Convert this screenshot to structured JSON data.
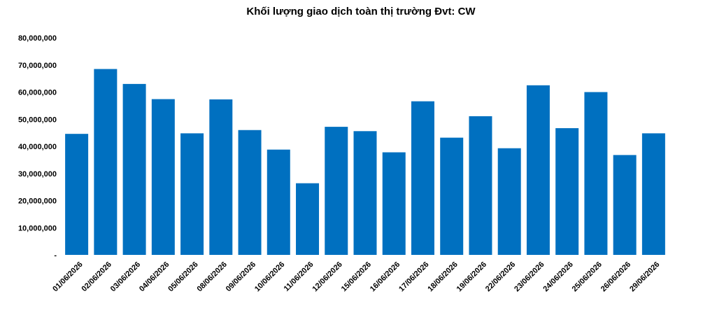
{
  "chart_data": {
    "type": "bar",
    "title": "Khối lượng giao dịch toàn thị trường Đvt: CW",
    "xlabel": "",
    "ylabel": "",
    "categories": [
      "01/06/2026",
      "02/06/2026",
      "03/06/2026",
      "04/06/2026",
      "05/06/2026",
      "08/06/2026",
      "09/06/2026",
      "10/06/2026",
      "11/06/2026",
      "12/06/2026",
      "15/06/2026",
      "16/06/2026",
      "17/06/2026",
      "18/06/2026",
      "19/06/2026",
      "22/06/2026",
      "23/06/2026",
      "24/06/2026",
      "25/06/2026",
      "26/06/2026",
      "29/06/2026"
    ],
    "values": [
      44600000,
      68500000,
      63000000,
      57400000,
      44800000,
      57300000,
      46000000,
      38800000,
      26400000,
      47200000,
      45600000,
      37800000,
      56600000,
      43200000,
      51100000,
      39300000,
      62500000,
      46700000,
      60000000,
      36800000,
      44800000
    ],
    "ylim": [
      0,
      80000000
    ],
    "ytick_labels": [
      "-",
      "10,000,000",
      "20,000,000",
      "30,000,000",
      "40,000,000",
      "50,000,000",
      "60,000,000",
      "70,000,000",
      "80,000,000"
    ],
    "grid": false,
    "legend": "none",
    "bar_color": "#0070C0"
  }
}
